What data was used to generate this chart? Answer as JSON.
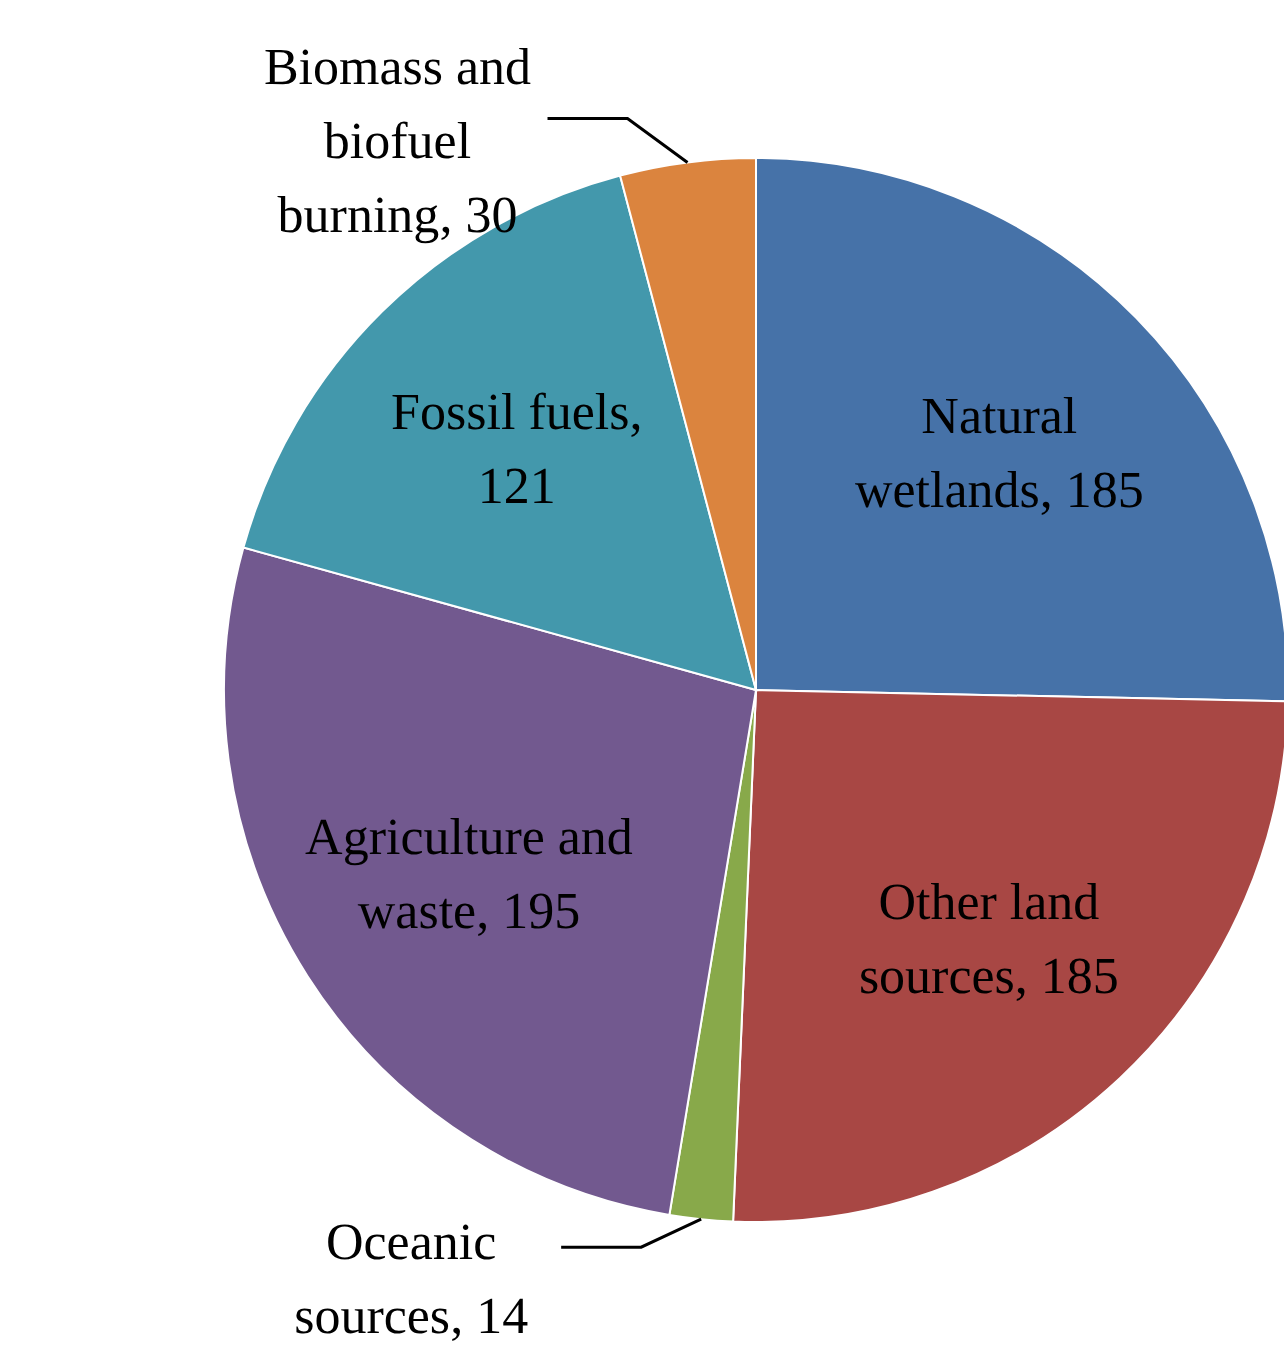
{
  "chart_data": {
    "type": "pie",
    "categories": [
      "Natural wetlands",
      "Other land sources",
      "Oceanic sources",
      "Agriculture and waste",
      "Fossil fuels",
      "Biomass and biofuel burning"
    ],
    "values": [
      185,
      185,
      14,
      195,
      121,
      30
    ],
    "colors": [
      "#4672a8",
      "#a84744",
      "#88a94a",
      "#72598f",
      "#4398ac",
      "#db843e"
    ],
    "value_labels": [
      ", 185",
      ", 185",
      ", 14",
      ", 195",
      ", 121",
      ", 30"
    ],
    "legend": false
  }
}
